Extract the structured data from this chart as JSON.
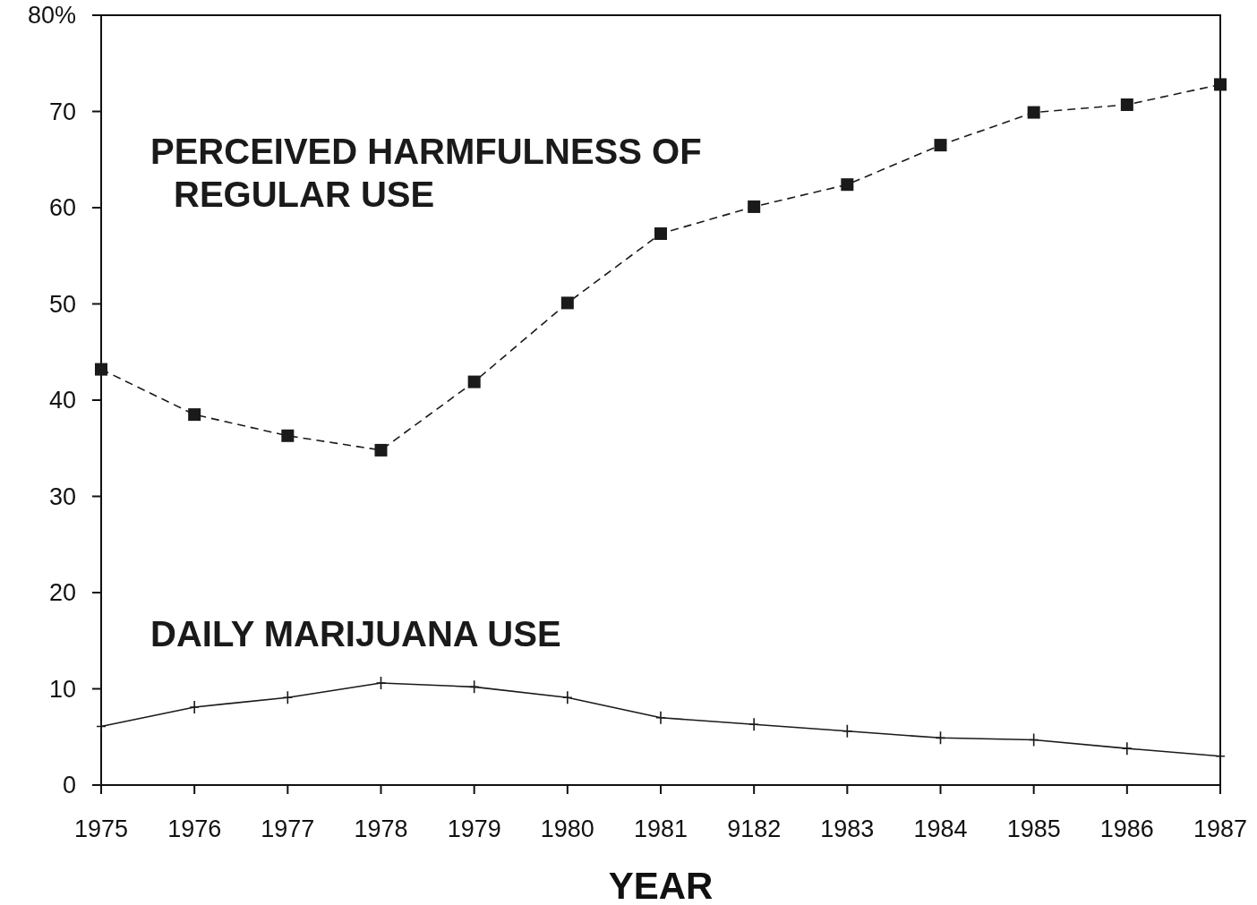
{
  "chart_data": {
    "type": "line",
    "xlabel": "YEAR",
    "categories": [
      "1975",
      "1976",
      "1977",
      "1978",
      "1979",
      "1980",
      "1981",
      "9182",
      "1983",
      "1984",
      "1985",
      "1986",
      "1987"
    ],
    "ylim": [
      0,
      80
    ],
    "yticks": [
      0,
      10,
      20,
      30,
      40,
      50,
      60,
      70,
      {
        "value": 80,
        "label": "80%"
      }
    ],
    "series": [
      {
        "name": "PERCEIVED HARMFULNESS OF REGULAR USE",
        "color": "#1a1a1a",
        "marker": "square",
        "line_style": "dashed",
        "values": [
          43.2,
          38.5,
          36.3,
          34.8,
          41.9,
          50.1,
          57.3,
          60.1,
          62.4,
          66.5,
          69.9,
          70.7,
          72.8
        ]
      },
      {
        "name": "DAILY MARIJUANA USE",
        "color": "#1a1a1a",
        "marker": "cross",
        "line_style": "solid",
        "values": [
          6.1,
          8.1,
          9.1,
          10.6,
          10.2,
          9.1,
          7.0,
          6.3,
          5.6,
          4.9,
          4.7,
          3.8,
          3.0
        ]
      }
    ]
  }
}
